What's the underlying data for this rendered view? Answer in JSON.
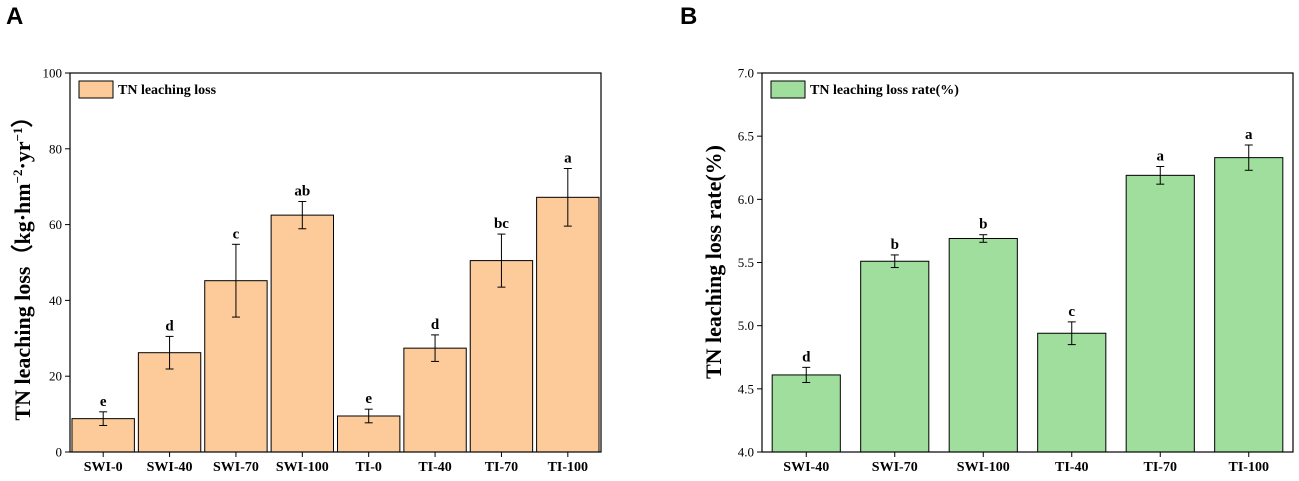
{
  "chart_data": [
    {
      "type": "bar",
      "panel_label": "A",
      "categories": [
        "SWI-0",
        "SWI-40",
        "SWI-70",
        "SWI-100",
        "TI-0",
        "TI-40",
        "TI-70",
        "TI-100"
      ],
      "values": [
        8.8,
        26.2,
        45.2,
        62.5,
        9.5,
        27.4,
        50.5,
        67.2
      ],
      "errors": [
        1.8,
        4.3,
        9.6,
        3.6,
        1.8,
        3.5,
        7.0,
        7.6
      ],
      "significance": [
        "e",
        "d",
        "c",
        "ab",
        "e",
        "d",
        "bc",
        "a"
      ],
      "ylabel_main": "TN leaching loss（kg·hm",
      "ylabel_sup1": "−2",
      "ylabel_mid": "·yr",
      "ylabel_sup2": "−1",
      "ylabel_end": "）",
      "ylim": [
        0,
        100
      ],
      "yticks": [
        "0",
        "20",
        "40",
        "60",
        "80",
        "100"
      ],
      "legend": "TN leaching loss",
      "color": "#FDCB9A",
      "legend_position": "top-left"
    },
    {
      "type": "bar",
      "panel_label": "B",
      "categories": [
        "SWI-40",
        "SWI-70",
        "SWI-100",
        "TI-40",
        "TI-70",
        "TI-100"
      ],
      "values": [
        4.61,
        5.51,
        5.69,
        4.94,
        6.19,
        6.33
      ],
      "errors": [
        0.06,
        0.05,
        0.03,
        0.09,
        0.07,
        0.1
      ],
      "significance": [
        "d",
        "b",
        "b",
        "c",
        "a",
        "a"
      ],
      "ylabel": "TN leaching loss rate(%)",
      "ylim": [
        4.0,
        7.0
      ],
      "yticks": [
        "4.0",
        "4.5",
        "5.0",
        "5.5",
        "6.0",
        "6.5",
        "7.0"
      ],
      "legend": "TN leaching loss rate(%)",
      "color": "#A0DE9E",
      "legend_position": "top-left"
    }
  ]
}
